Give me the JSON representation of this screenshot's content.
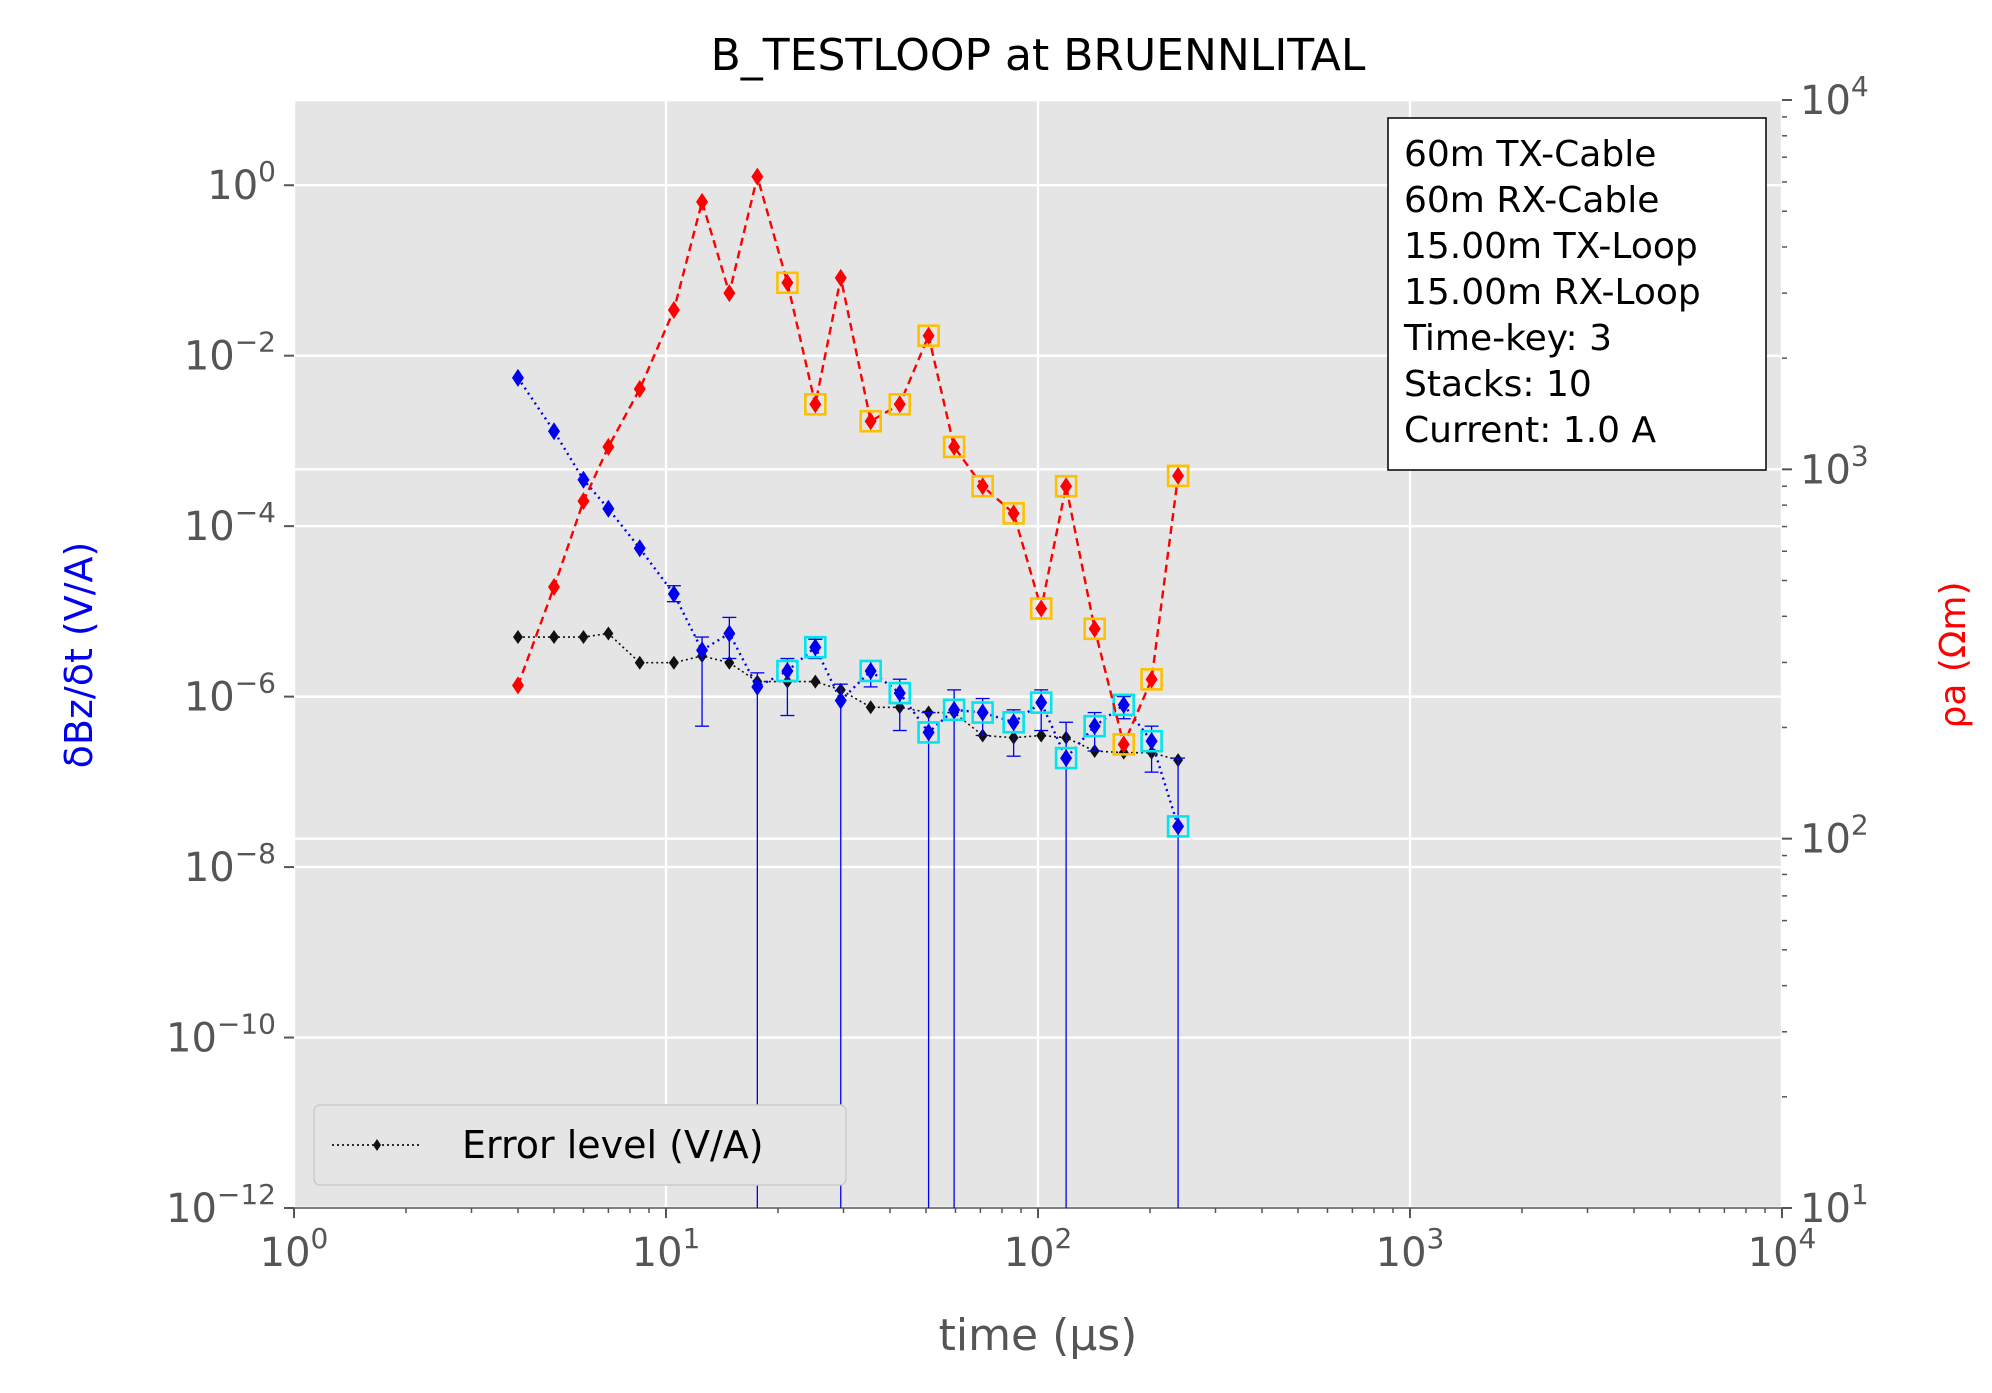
{
  "chart_data": {
    "type": "scatter",
    "title": "B_TESTLOOP at BRUENNLITAL",
    "xlabel": "time (μs)",
    "ylabel_left": "δBz/δt (V/A)",
    "ylabel_right": "ρa (Ωm)",
    "x_scale": "log",
    "xlim": [
      1,
      10000
    ],
    "ylim_left": [
      1e-12,
      10
    ],
    "ylim_right": [
      10,
      10000
    ],
    "grid": true,
    "x_ticks": [
      {
        "value": 1,
        "mantissa": "10",
        "exp": "0"
      },
      {
        "value": 10,
        "mantissa": "10",
        "exp": "1"
      },
      {
        "value": 100,
        "mantissa": "10",
        "exp": "2"
      },
      {
        "value": 1000,
        "mantissa": "10",
        "exp": "3"
      },
      {
        "value": 10000,
        "mantissa": "10",
        "exp": "4"
      }
    ],
    "left_ticks": [
      {
        "value": 1,
        "mantissa": "10",
        "exp": "0"
      },
      {
        "value": 0.01,
        "mantissa": "10",
        "exp": "−2"
      },
      {
        "value": 0.0001,
        "mantissa": "10",
        "exp": "−4"
      },
      {
        "value": 1e-06,
        "mantissa": "10",
        "exp": "−6"
      },
      {
        "value": 1e-08,
        "mantissa": "10",
        "exp": "−8"
      },
      {
        "value": 1e-10,
        "mantissa": "10",
        "exp": "−10"
      },
      {
        "value": 1e-12,
        "mantissa": "10",
        "exp": "−12"
      }
    ],
    "right_ticks": [
      {
        "value": 10,
        "mantissa": "10",
        "exp": "1"
      },
      {
        "value": 100,
        "mantissa": "10",
        "exp": "2"
      },
      {
        "value": 1000,
        "mantissa": "10",
        "exp": "3"
      },
      {
        "value": 10000,
        "mantissa": "10",
        "exp": "4"
      }
    ],
    "legend": {
      "placement": "lower-left",
      "entries": [
        "Error level (V/A)"
      ]
    },
    "info_box": {
      "placement": "top-right",
      "lines": [
        "60m TX-Cable",
        "60m RX-Cable",
        "15.00m TX-Loop",
        "15.00m RX-Loop",
        "Time-key: 3",
        "Stacks: 10",
        "Current: 1.0 A"
      ]
    },
    "colors": {
      "signal": "#0000ee",
      "error_level": "#111111",
      "resistivity": "#ff0000",
      "signal_flag": "#00e5ee",
      "resistivity_flag": "#ffc000",
      "plot_bg": "#e5e5e5"
    },
    "series": [
      {
        "key": "signal",
        "axis": "left",
        "x": [
          4.0,
          5.0,
          6.0,
          7.0,
          8.5,
          10.5,
          12.5,
          14.8,
          17.6,
          21.2,
          25.2,
          29.5,
          35.5,
          42.5,
          50.8,
          59.5,
          71.0,
          86.0,
          102.0,
          119.0,
          142.0,
          170.0,
          202.0,
          238.0
        ],
        "y": [
          0.0055,
          0.0013,
          0.00035,
          0.00016,
          5.5e-05,
          1.6e-05,
          3.5e-06,
          5.5e-06,
          1.3e-06,
          2e-06,
          3.8e-06,
          9e-07,
          2e-06,
          1.1e-06,
          3.8e-07,
          7e-07,
          6.5e-07,
          5e-07,
          8.5e-07,
          1.9e-07,
          4.5e-07,
          8e-07,
          3e-07,
          3e-08
        ],
        "yerr_low": [
          null,
          null,
          null,
          null,
          null,
          1.3e-05,
          4.5e-07,
          2.8e-06,
          1e-12,
          6e-07,
          2.8e-06,
          1e-12,
          1.3e-06,
          4e-07,
          1e-12,
          1e-12,
          3.5e-07,
          2e-07,
          4e-07,
          1e-12,
          2.3e-07,
          5.5e-07,
          1.3e-07,
          1e-12
        ],
        "yerr_high": [
          null,
          null,
          null,
          null,
          null,
          2e-05,
          5e-06,
          8.5e-06,
          1.9e-06,
          2.8e-06,
          4.7e-06,
          1.4e-06,
          2.6e-06,
          1.6e-06,
          6.5e-07,
          1.2e-06,
          9.5e-07,
          7e-07,
          1.2e-06,
          5e-07,
          6.5e-07,
          1e-06,
          4.5e-07,
          1.9e-07
        ],
        "flagged": [
          false,
          false,
          false,
          false,
          false,
          false,
          false,
          false,
          false,
          true,
          true,
          false,
          true,
          true,
          true,
          true,
          true,
          true,
          true,
          true,
          true,
          true,
          true,
          true
        ]
      },
      {
        "key": "error_level",
        "axis": "left",
        "name": "Error level (V/A)",
        "x": [
          4.0,
          5.0,
          6.0,
          7.0,
          8.5,
          10.5,
          12.5,
          14.8,
          17.6,
          21.2,
          25.2,
          29.5,
          35.5,
          42.5,
          50.8,
          59.5,
          71.0,
          86.0,
          102.0,
          119.0,
          142.0,
          170.0,
          202.0,
          238.0
        ],
        "y": [
          5e-06,
          5e-06,
          5e-06,
          5.5e-06,
          2.5e-06,
          2.5e-06,
          3e-06,
          2.5e-06,
          1.5e-06,
          1.5e-06,
          1.5e-06,
          1.2e-06,
          7.5e-07,
          7.5e-07,
          6.5e-07,
          6.5e-07,
          3.5e-07,
          3.3e-07,
          3.5e-07,
          3.3e-07,
          2.3e-07,
          2.2e-07,
          2.2e-07,
          1.8e-07
        ]
      },
      {
        "key": "resistivity",
        "axis": "right",
        "x": [
          4.0,
          5.0,
          6.0,
          7.0,
          8.5,
          10.5,
          12.5,
          14.8,
          17.6,
          21.2,
          25.2,
          29.5,
          35.5,
          42.5,
          50.8,
          59.5,
          71.0,
          86.0,
          102.0,
          119.0,
          142.0,
          170.0,
          202.0,
          238.0
        ],
        "y": [
          260,
          480,
          820,
          1150,
          1650,
          2700,
          5300,
          3000,
          6200,
          3200,
          1500,
          3300,
          1350,
          1500,
          2300,
          1150,
          900,
          760,
          420,
          900,
          370,
          180,
          270,
          960
        ],
        "flagged": [
          false,
          false,
          false,
          false,
          false,
          false,
          false,
          false,
          false,
          true,
          true,
          false,
          true,
          true,
          true,
          true,
          true,
          true,
          true,
          true,
          true,
          true,
          true,
          true
        ]
      }
    ]
  }
}
